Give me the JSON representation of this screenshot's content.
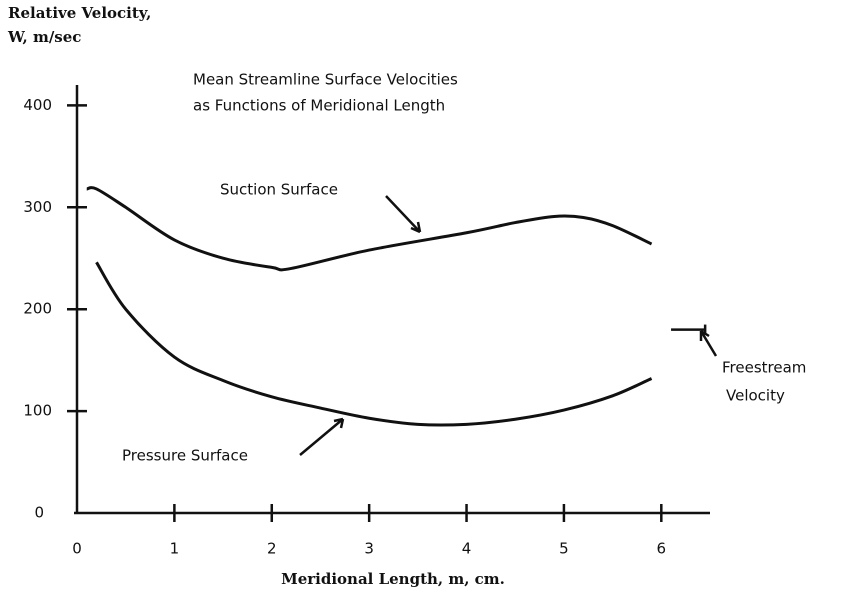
{
  "chart_data": {
    "type": "line",
    "title": [
      "Mean Streamline Surface Velocities",
      "as Functions of Meridional Length"
    ],
    "y_label": [
      "Relative Velocity,",
      "W, m/sec"
    ],
    "x_label": "Meridional Length, m, cm.",
    "xlim": [
      0,
      6.5
    ],
    "ylim": [
      0,
      420
    ],
    "xticks": [
      0,
      1,
      2,
      3,
      4,
      5,
      6
    ],
    "yticks": [
      0,
      100,
      200,
      300,
      400
    ],
    "series": [
      {
        "name": "Suction Surface",
        "color": "#111111",
        "x": [
          0.1,
          0.2,
          0.5,
          1,
          1.5,
          2,
          2.2,
          3,
          4,
          4.5,
          4.9,
          5.2,
          5.5,
          5.9
        ],
        "values": [
          318,
          318,
          300,
          268,
          250,
          241,
          240,
          258,
          275,
          285,
          291,
          290,
          282,
          264
        ]
      },
      {
        "name": "Pressure Surface",
        "color": "#111111",
        "x": [
          0.2,
          0.5,
          1,
          1.5,
          2,
          2.5,
          3,
          3.5,
          4,
          4.5,
          5,
          5.5,
          5.9
        ],
        "values": [
          246,
          200,
          153,
          130,
          114,
          103,
          93,
          87,
          87,
          92,
          101,
          115,
          132
        ]
      }
    ],
    "reference": {
      "label": [
        "Freestream",
        "Velocity"
      ],
      "value": 180,
      "x": [
        6.1,
        6.45
      ]
    }
  }
}
